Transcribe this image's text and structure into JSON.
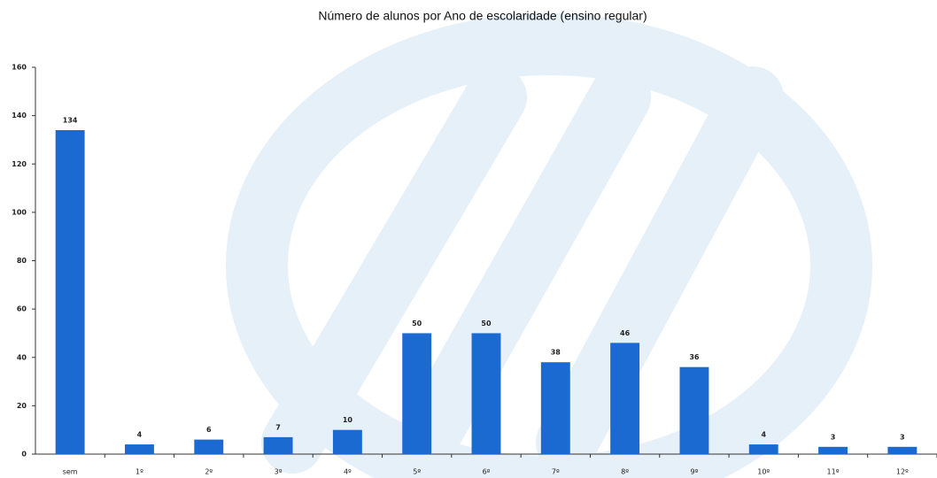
{
  "chart_data": {
    "type": "bar",
    "title": "Número de alunos por Ano de escolaridade (ensino regular)",
    "categories": [
      "sem",
      "1º",
      "2º",
      "3º",
      "4º",
      "5º",
      "6º",
      "7º",
      "8º",
      "9º",
      "10º",
      "11º",
      "12º"
    ],
    "values": [
      134,
      4,
      6,
      7,
      10,
      50,
      50,
      38,
      46,
      36,
      4,
      3,
      3
    ],
    "color": "#1a6ad2",
    "ylim": [
      0,
      160
    ],
    "yticks": [
      0,
      20,
      40,
      60,
      80,
      100,
      120,
      140,
      160
    ],
    "grid": false
  }
}
